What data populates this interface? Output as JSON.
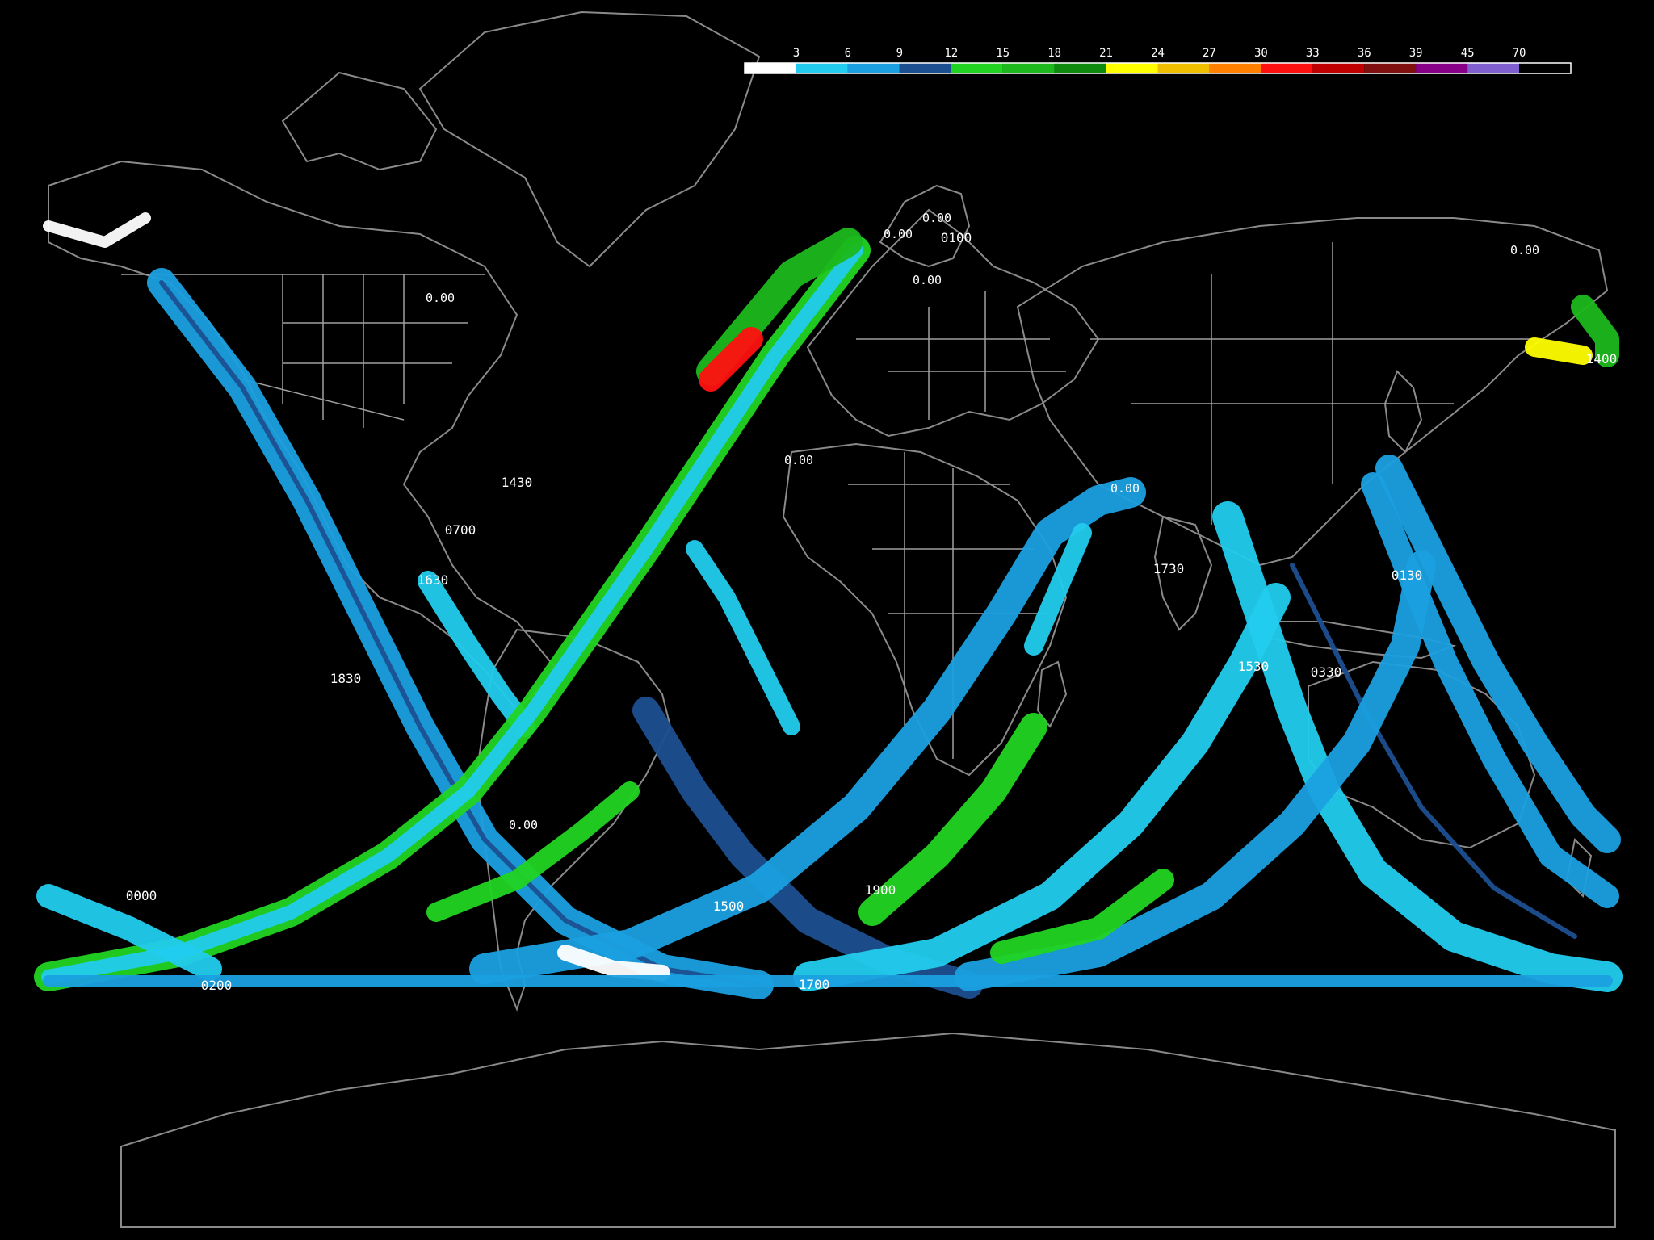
{
  "colorbar": {
    "tick_labels": [
      "3",
      "6",
      "9",
      "12",
      "15",
      "18",
      "21",
      "24",
      "27",
      "30",
      "33",
      "36",
      "39",
      "45",
      "70"
    ],
    "bins": [
      {
        "color": "#ffffff"
      },
      {
        "color": "#22ccee"
      },
      {
        "color": "#1aa0e0"
      },
      {
        "color": "#1c4f90"
      },
      {
        "color": "#22d422"
      },
      {
        "color": "#1cb81c"
      },
      {
        "color": "#0e8a0e"
      },
      {
        "color": "#ffff00"
      },
      {
        "color": "#f0c000"
      },
      {
        "color": "#ff8000"
      },
      {
        "color": "#ff1010"
      },
      {
        "color": "#c00000"
      },
      {
        "color": "#801010"
      },
      {
        "color": "#880088"
      },
      {
        "color": "#8060d0"
      },
      {
        "color": "#000000"
      }
    ]
  },
  "time_labels": [
    "0000",
    "0100",
    "0130",
    "0200",
    "0330",
    "0700",
    "1400",
    "1430",
    "1500",
    "1530",
    "1630",
    "1700",
    "1730",
    "1830",
    "1900"
  ],
  "value_labels": [
    "0.00"
  ],
  "map_style": {
    "background": "#000000",
    "coastline": "#8a8a8a",
    "border": "#a0a0a0"
  }
}
